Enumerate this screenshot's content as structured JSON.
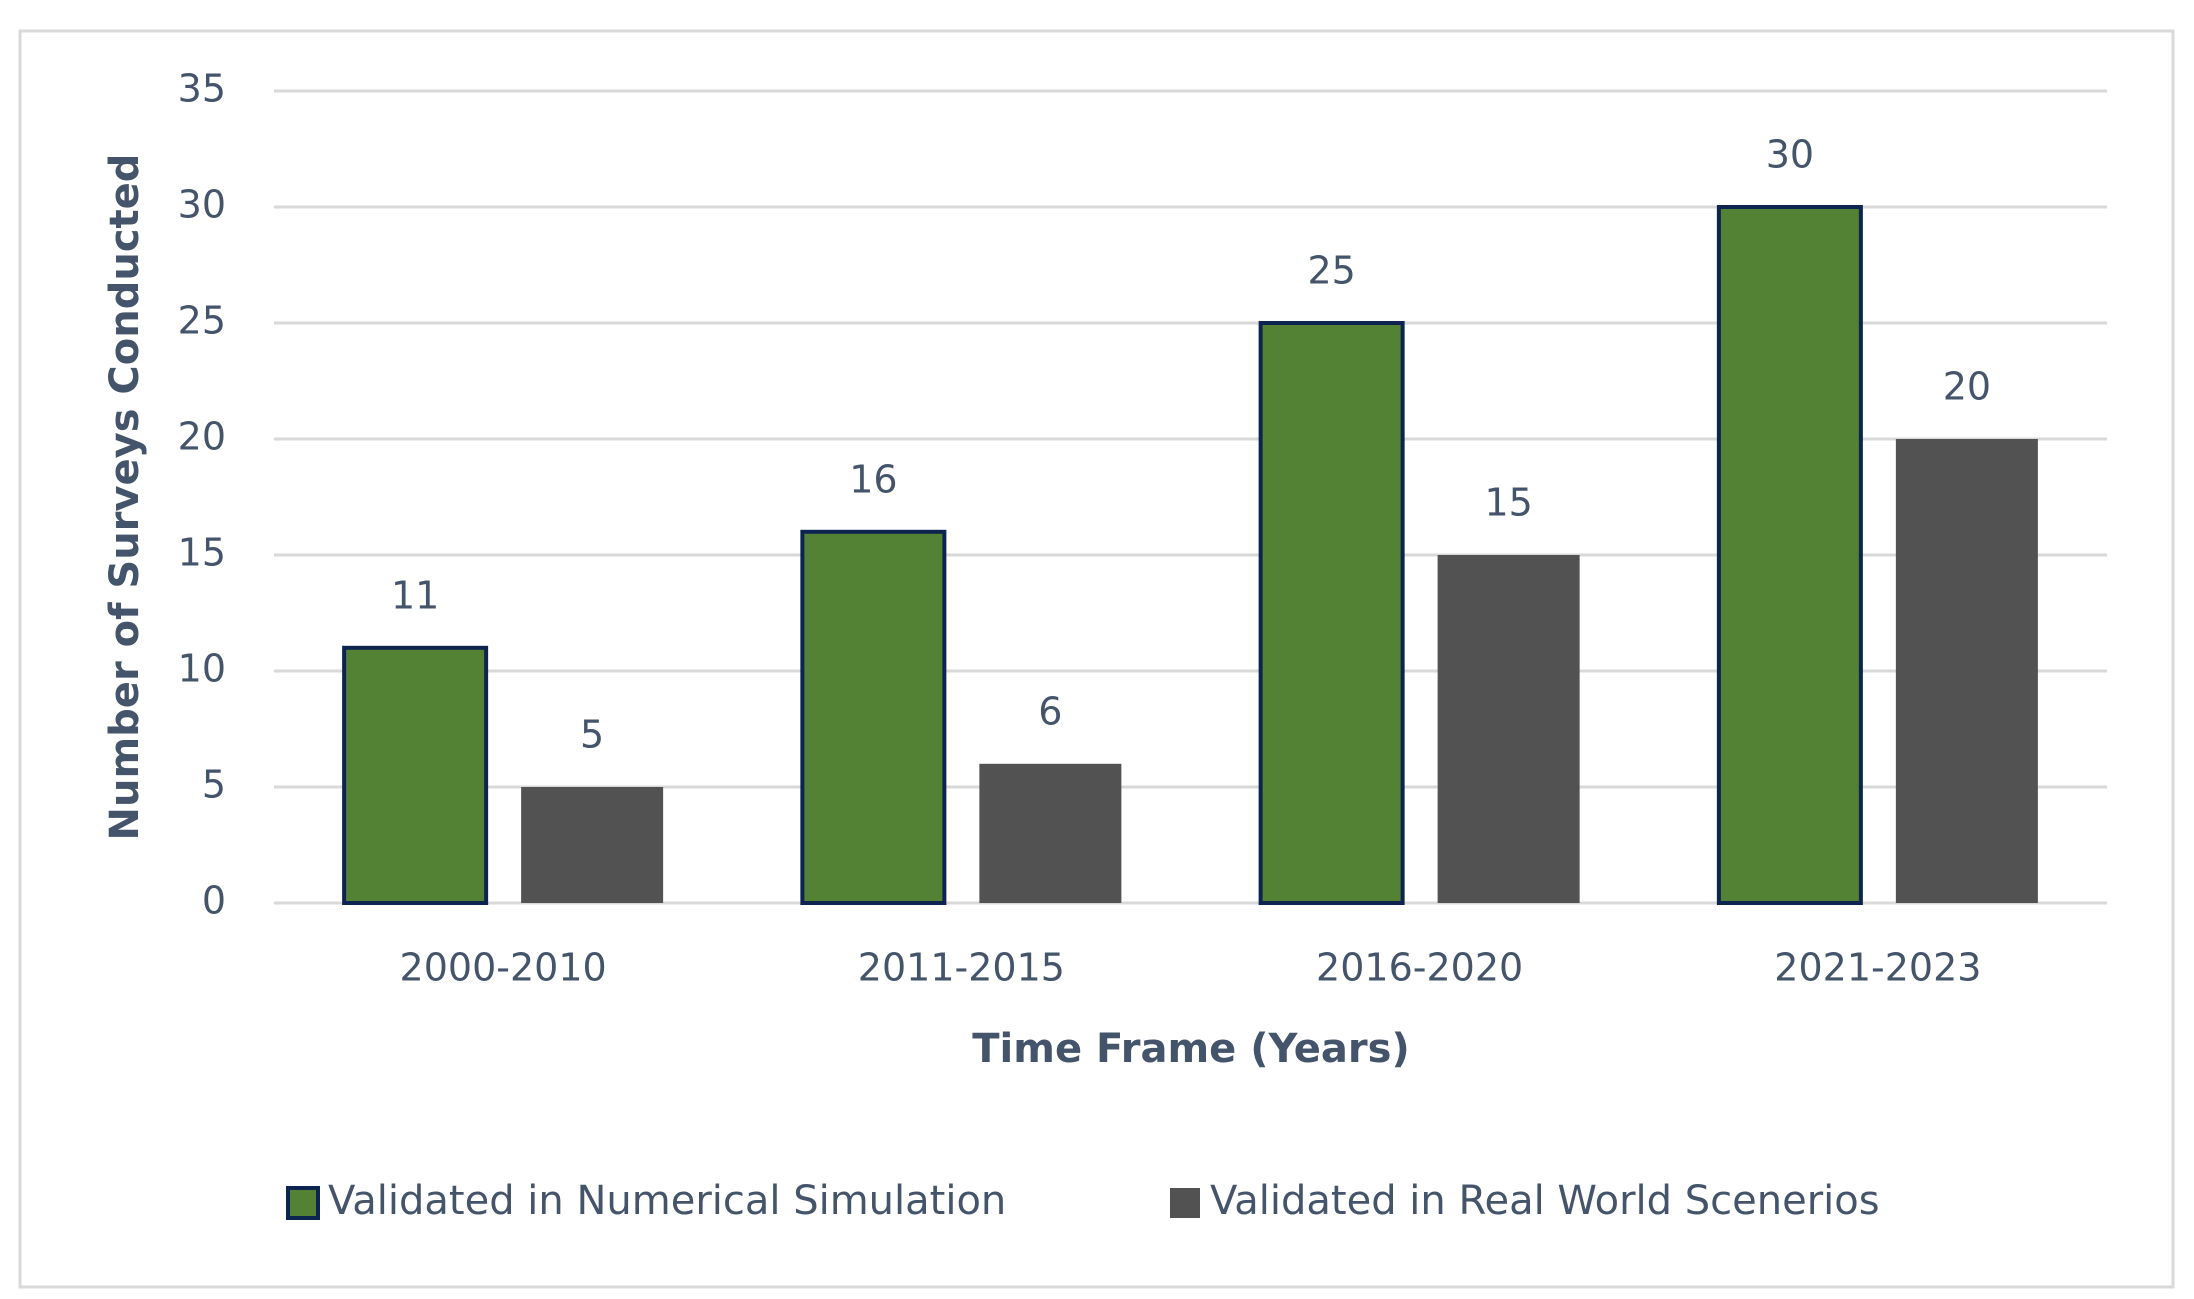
{
  "chart_data": {
    "type": "bar",
    "x_label": "Time Frame (Years)",
    "y_label": "Number of Surveys Conducted",
    "categories": [
      "2000-2010",
      "2011-2015",
      "2016-2020",
      "2021-2023"
    ],
    "series": [
      {
        "name": "Validated in Numerical Simulation",
        "color": "#548235",
        "edgecolor": "#0d2350",
        "values": [
          11,
          16,
          25,
          30
        ]
      },
      {
        "name": "Validated in Real World Scenerios",
        "color": "#525252",
        "values": [
          5,
          6,
          15,
          20
        ]
      }
    ],
    "ylim": [
      0,
      35
    ],
    "yticks": [
      0,
      5,
      10,
      15,
      20,
      25,
      30,
      35
    ],
    "grid": true,
    "legend": "bottom"
  }
}
